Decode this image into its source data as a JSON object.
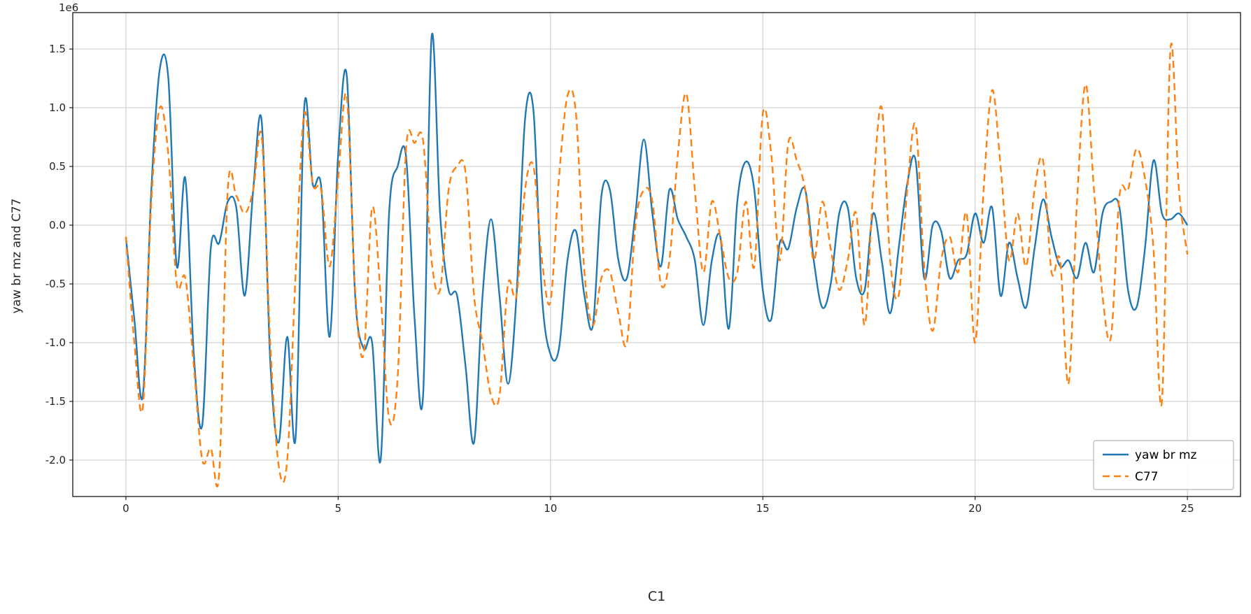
{
  "chart_data": {
    "type": "line",
    "title": "",
    "xlabel": "C1",
    "ylabel": "yaw br mz and C77",
    "offset_text": "1e6",
    "grid": true,
    "legend_position": "lower right",
    "xlim": [
      -1.25,
      26.25
    ],
    "ylim": [
      -2.31,
      1.81
    ],
    "xticks": {
      "values": [
        0,
        5,
        10,
        15,
        20,
        25
      ],
      "labels": [
        "0",
        "5",
        "10",
        "15",
        "20",
        "25"
      ]
    },
    "yticks": {
      "values": [
        -2.0,
        -1.5,
        -1.0,
        -0.5,
        0.0,
        0.5,
        1.0,
        1.5
      ],
      "labels": [
        "-2.0",
        "-1.5",
        "-1.0",
        "-0.5",
        "0.0",
        "0.5",
        "1.0",
        "1.5"
      ]
    },
    "values_unit": "1e6",
    "colors": {
      "grid": "#c9c9c9",
      "spine": "#000000",
      "tick_label": "#262626",
      "legend_border": "#b3b3b3"
    },
    "x": [
      0.0,
      0.2,
      0.4,
      0.6,
      0.8,
      1.0,
      1.2,
      1.4,
      1.6,
      1.8,
      2.0,
      2.2,
      2.4,
      2.6,
      2.8,
      3.0,
      3.2,
      3.4,
      3.6,
      3.8,
      4.0,
      4.2,
      4.4,
      4.6,
      4.8,
      5.0,
      5.2,
      5.4,
      5.6,
      5.8,
      6.0,
      6.2,
      6.4,
      6.6,
      6.8,
      7.0,
      7.2,
      7.4,
      7.6,
      7.8,
      8.0,
      8.2,
      8.4,
      8.6,
      8.8,
      9.0,
      9.2,
      9.4,
      9.6,
      9.8,
      10.0,
      10.2,
      10.4,
      10.6,
      10.8,
      11.0,
      11.2,
      11.4,
      11.6,
      11.8,
      12.0,
      12.2,
      12.4,
      12.6,
      12.8,
      13.0,
      13.2,
      13.4,
      13.6,
      13.8,
      14.0,
      14.2,
      14.4,
      14.6,
      14.8,
      15.0,
      15.2,
      15.4,
      15.6,
      15.8,
      16.0,
      16.2,
      16.4,
      16.6,
      16.8,
      17.0,
      17.2,
      17.4,
      17.6,
      17.8,
      18.0,
      18.2,
      18.4,
      18.6,
      18.8,
      19.0,
      19.2,
      19.4,
      19.6,
      19.8,
      20.0,
      20.2,
      20.4,
      20.6,
      20.8,
      21.0,
      21.2,
      21.4,
      21.6,
      21.8,
      22.0,
      22.2,
      22.4,
      22.6,
      22.8,
      23.0,
      23.2,
      23.4,
      23.6,
      23.8,
      24.0,
      24.2,
      24.4,
      24.6,
      24.8,
      25.0
    ],
    "series": [
      {
        "name": "yaw br mz",
        "color": "#1f77b4",
        "dash": "solid",
        "values": [
          -0.1,
          -0.8,
          -1.45,
          0.3,
          1.33,
          1.25,
          -0.35,
          0.4,
          -1.1,
          -1.7,
          -0.2,
          -0.15,
          0.2,
          0.15,
          -0.6,
          0.3,
          0.88,
          -1.15,
          -1.85,
          -0.95,
          -1.8,
          1.0,
          0.35,
          0.33,
          -0.95,
          0.6,
          1.28,
          -0.6,
          -1.05,
          -1.0,
          -2.0,
          0.1,
          0.5,
          0.58,
          -0.8,
          -1.45,
          1.6,
          0.1,
          -0.55,
          -0.6,
          -1.2,
          -1.85,
          -0.6,
          0.05,
          -0.6,
          -1.35,
          -0.6,
          0.9,
          0.97,
          -0.6,
          -1.1,
          -1.05,
          -0.3,
          -0.05,
          -0.6,
          -0.85,
          0.25,
          0.3,
          -0.3,
          -0.45,
          0.1,
          0.73,
          0.1,
          -0.35,
          0.3,
          0.05,
          -0.1,
          -0.3,
          -0.85,
          -0.3,
          -0.1,
          -0.88,
          0.2,
          0.54,
          0.3,
          -0.55,
          -0.8,
          -0.15,
          -0.2,
          0.15,
          0.3,
          -0.3,
          -0.7,
          -0.5,
          0.1,
          0.15,
          -0.45,
          -0.55,
          0.1,
          -0.3,
          -0.75,
          -0.2,
          0.35,
          0.55,
          -0.45,
          0.0,
          -0.05,
          -0.45,
          -0.3,
          -0.25,
          0.1,
          -0.15,
          0.15,
          -0.6,
          -0.15,
          -0.45,
          -0.7,
          -0.2,
          0.22,
          -0.1,
          -0.35,
          -0.3,
          -0.45,
          -0.15,
          -0.4,
          0.1,
          0.2,
          0.15,
          -0.55,
          -0.7,
          -0.2,
          0.55,
          0.1,
          0.05,
          0.1,
          0.0
        ]
      },
      {
        "name": "C77",
        "color": "#ff7f0e",
        "dash": "dashed",
        "values": [
          -0.1,
          -1.0,
          -1.55,
          0.2,
          1.0,
          0.6,
          -0.5,
          -0.45,
          -1.2,
          -2.0,
          -1.9,
          -2.1,
          0.3,
          0.25,
          0.1,
          0.3,
          0.75,
          -1.0,
          -2.05,
          -2.0,
          -0.4,
          0.95,
          0.35,
          0.3,
          -0.35,
          0.4,
          1.1,
          -0.55,
          -1.1,
          0.15,
          -0.6,
          -1.65,
          -1.3,
          0.65,
          0.7,
          0.72,
          -0.3,
          -0.55,
          0.3,
          0.5,
          0.45,
          -0.6,
          -1.0,
          -1.45,
          -1.45,
          -0.5,
          -0.6,
          0.3,
          0.5,
          -0.3,
          -0.65,
          0.4,
          1.1,
          0.95,
          -0.4,
          -0.85,
          -0.45,
          -0.4,
          -0.75,
          -1.0,
          0.0,
          0.3,
          0.2,
          -0.5,
          -0.3,
          0.6,
          1.12,
          0.3,
          -0.4,
          0.2,
          -0.1,
          -0.45,
          -0.4,
          0.2,
          -0.35,
          0.95,
          0.6,
          -0.3,
          0.7,
          0.55,
          0.3,
          -0.3,
          0.2,
          -0.2,
          -0.55,
          -0.3,
          0.1,
          -0.85,
          0.3,
          1.0,
          -0.3,
          -0.6,
          0.3,
          0.85,
          -0.35,
          -0.9,
          -0.3,
          -0.1,
          -0.4,
          0.1,
          -1.0,
          0.3,
          1.15,
          0.5,
          -0.3,
          0.1,
          -0.35,
          0.3,
          0.55,
          -0.4,
          -0.3,
          -1.35,
          0.2,
          1.2,
          0.3,
          -0.6,
          -0.95,
          0.25,
          0.3,
          0.65,
          0.4,
          -0.2,
          -1.5,
          1.5,
          0.3,
          -0.25
        ]
      }
    ]
  }
}
